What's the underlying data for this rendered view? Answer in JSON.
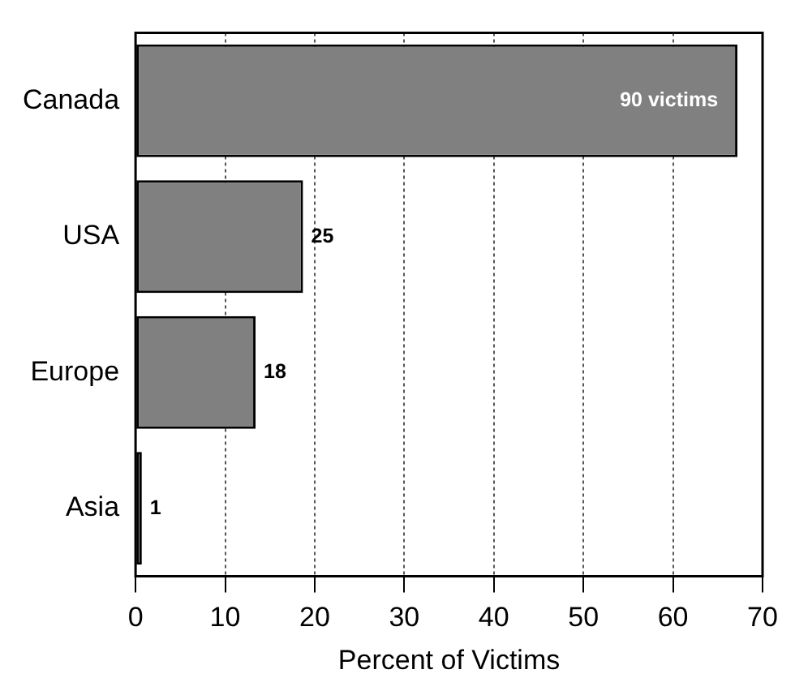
{
  "chart_data": {
    "type": "bar",
    "orientation": "horizontal",
    "categories": [
      "Canada",
      "USA",
      "Europe",
      "Asia"
    ],
    "values": [
      67.2,
      18.7,
      13.4,
      0.7
    ],
    "color": "#808080",
    "xlabel": "Percent of Victims",
    "xlim": [
      0,
      70
    ],
    "xticks": [
      0,
      10,
      20,
      30,
      40,
      50,
      60,
      70
    ],
    "grid": "x",
    "legend": false,
    "annotations": [
      {
        "text": "90 victims",
        "x": 67.2,
        "y": "Canada"
      },
      {
        "text": "25",
        "x": 18.7,
        "y": "USA"
      },
      {
        "text": "18",
        "x": 13.4,
        "y": "Europe"
      },
      {
        "text": "1",
        "x": 0.7,
        "y": "Asia"
      }
    ]
  }
}
